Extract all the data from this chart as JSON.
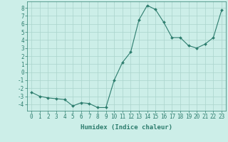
{
  "x": [
    0,
    1,
    2,
    3,
    4,
    5,
    6,
    7,
    8,
    9,
    10,
    11,
    12,
    13,
    14,
    15,
    16,
    17,
    18,
    19,
    20,
    21,
    22,
    23
  ],
  "y": [
    -2.5,
    -3.0,
    -3.2,
    -3.3,
    -3.4,
    -4.2,
    -3.8,
    -3.9,
    -4.4,
    -4.4,
    -1.0,
    1.2,
    2.5,
    6.5,
    8.3,
    7.8,
    6.2,
    4.3,
    4.3,
    3.3,
    3.0,
    3.5,
    4.3,
    7.7
  ],
  "line_color": "#2d7d6e",
  "marker_color": "#2d7d6e",
  "bg_color": "#cceee8",
  "grid_major_color": "#aad4cc",
  "grid_minor_color": "#bcddd6",
  "xlabel": "Humidex (Indice chaleur)",
  "ylim": [
    -4.8,
    8.8
  ],
  "xlim": [
    -0.5,
    23.5
  ],
  "yticks": [
    -4,
    -3,
    -2,
    -1,
    0,
    1,
    2,
    3,
    4,
    5,
    6,
    7,
    8
  ],
  "xticks": [
    0,
    1,
    2,
    3,
    4,
    5,
    6,
    7,
    8,
    9,
    10,
    11,
    12,
    13,
    14,
    15,
    16,
    17,
    18,
    19,
    20,
    21,
    22,
    23
  ],
  "tick_fontsize": 5.5,
  "label_fontsize": 6.5
}
